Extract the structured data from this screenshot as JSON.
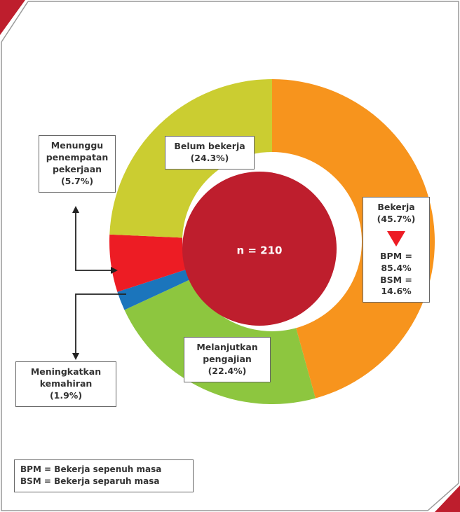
{
  "chart_data": {
    "type": "donut",
    "center_label": "n = 210",
    "categories": [
      "Bekerja",
      "Melanjutkan pengajian",
      "Meningkatkan kemahiran",
      "Menunggu penempatan pekerjaan",
      "Belum bekerja"
    ],
    "values": [
      45.7,
      22.4,
      1.9,
      5.7,
      24.3
    ],
    "value_labels": [
      "(45.7%)",
      "(22.4%)",
      "(1.9%)",
      "(5.7%)",
      "(24.3%)"
    ],
    "colors": [
      "#f7941d",
      "#8dc63f",
      "#1b75bc",
      "#ed1c24",
      "#cbcd31"
    ],
    "center_color": "#be1e2d",
    "annotations": [
      "BPM = 85.4%",
      "BSM = 14.6%"
    ],
    "notes": [
      "BPM = Bekerja sepenuh masa",
      "BSM = Bekerja separuh masa"
    ]
  }
}
